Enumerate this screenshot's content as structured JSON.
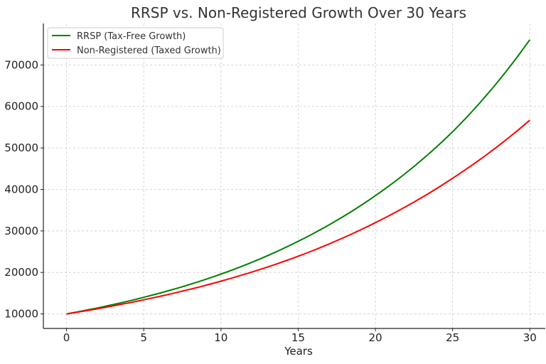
{
  "chart_data": {
    "type": "line",
    "title": "RRSP vs. Non-Registered Growth Over 30 Years",
    "xlabel": "Years",
    "ylabel": "",
    "xlim": [
      -1.5,
      31
    ],
    "ylim": [
      6500,
      80000
    ],
    "xticks": [
      0,
      5,
      10,
      15,
      20,
      25,
      30
    ],
    "yticks": [
      10000,
      20000,
      30000,
      40000,
      50000,
      60000,
      70000
    ],
    "grid": true,
    "legend_position": "top-left",
    "x": [
      0,
      5,
      10,
      15,
      20,
      25,
      30
    ],
    "series": [
      {
        "name": "RRSP (Tax-Free Growth)",
        "color": "#008000",
        "values": [
          10000,
          14000,
          19600,
          27500,
          38500,
          53900,
          76100
        ]
      },
      {
        "name": "Non-Registered (Taxed Growth)",
        "color": "#ff0000",
        "values": [
          10000,
          13400,
          17900,
          23900,
          32000,
          42700,
          56700
        ]
      }
    ]
  }
}
